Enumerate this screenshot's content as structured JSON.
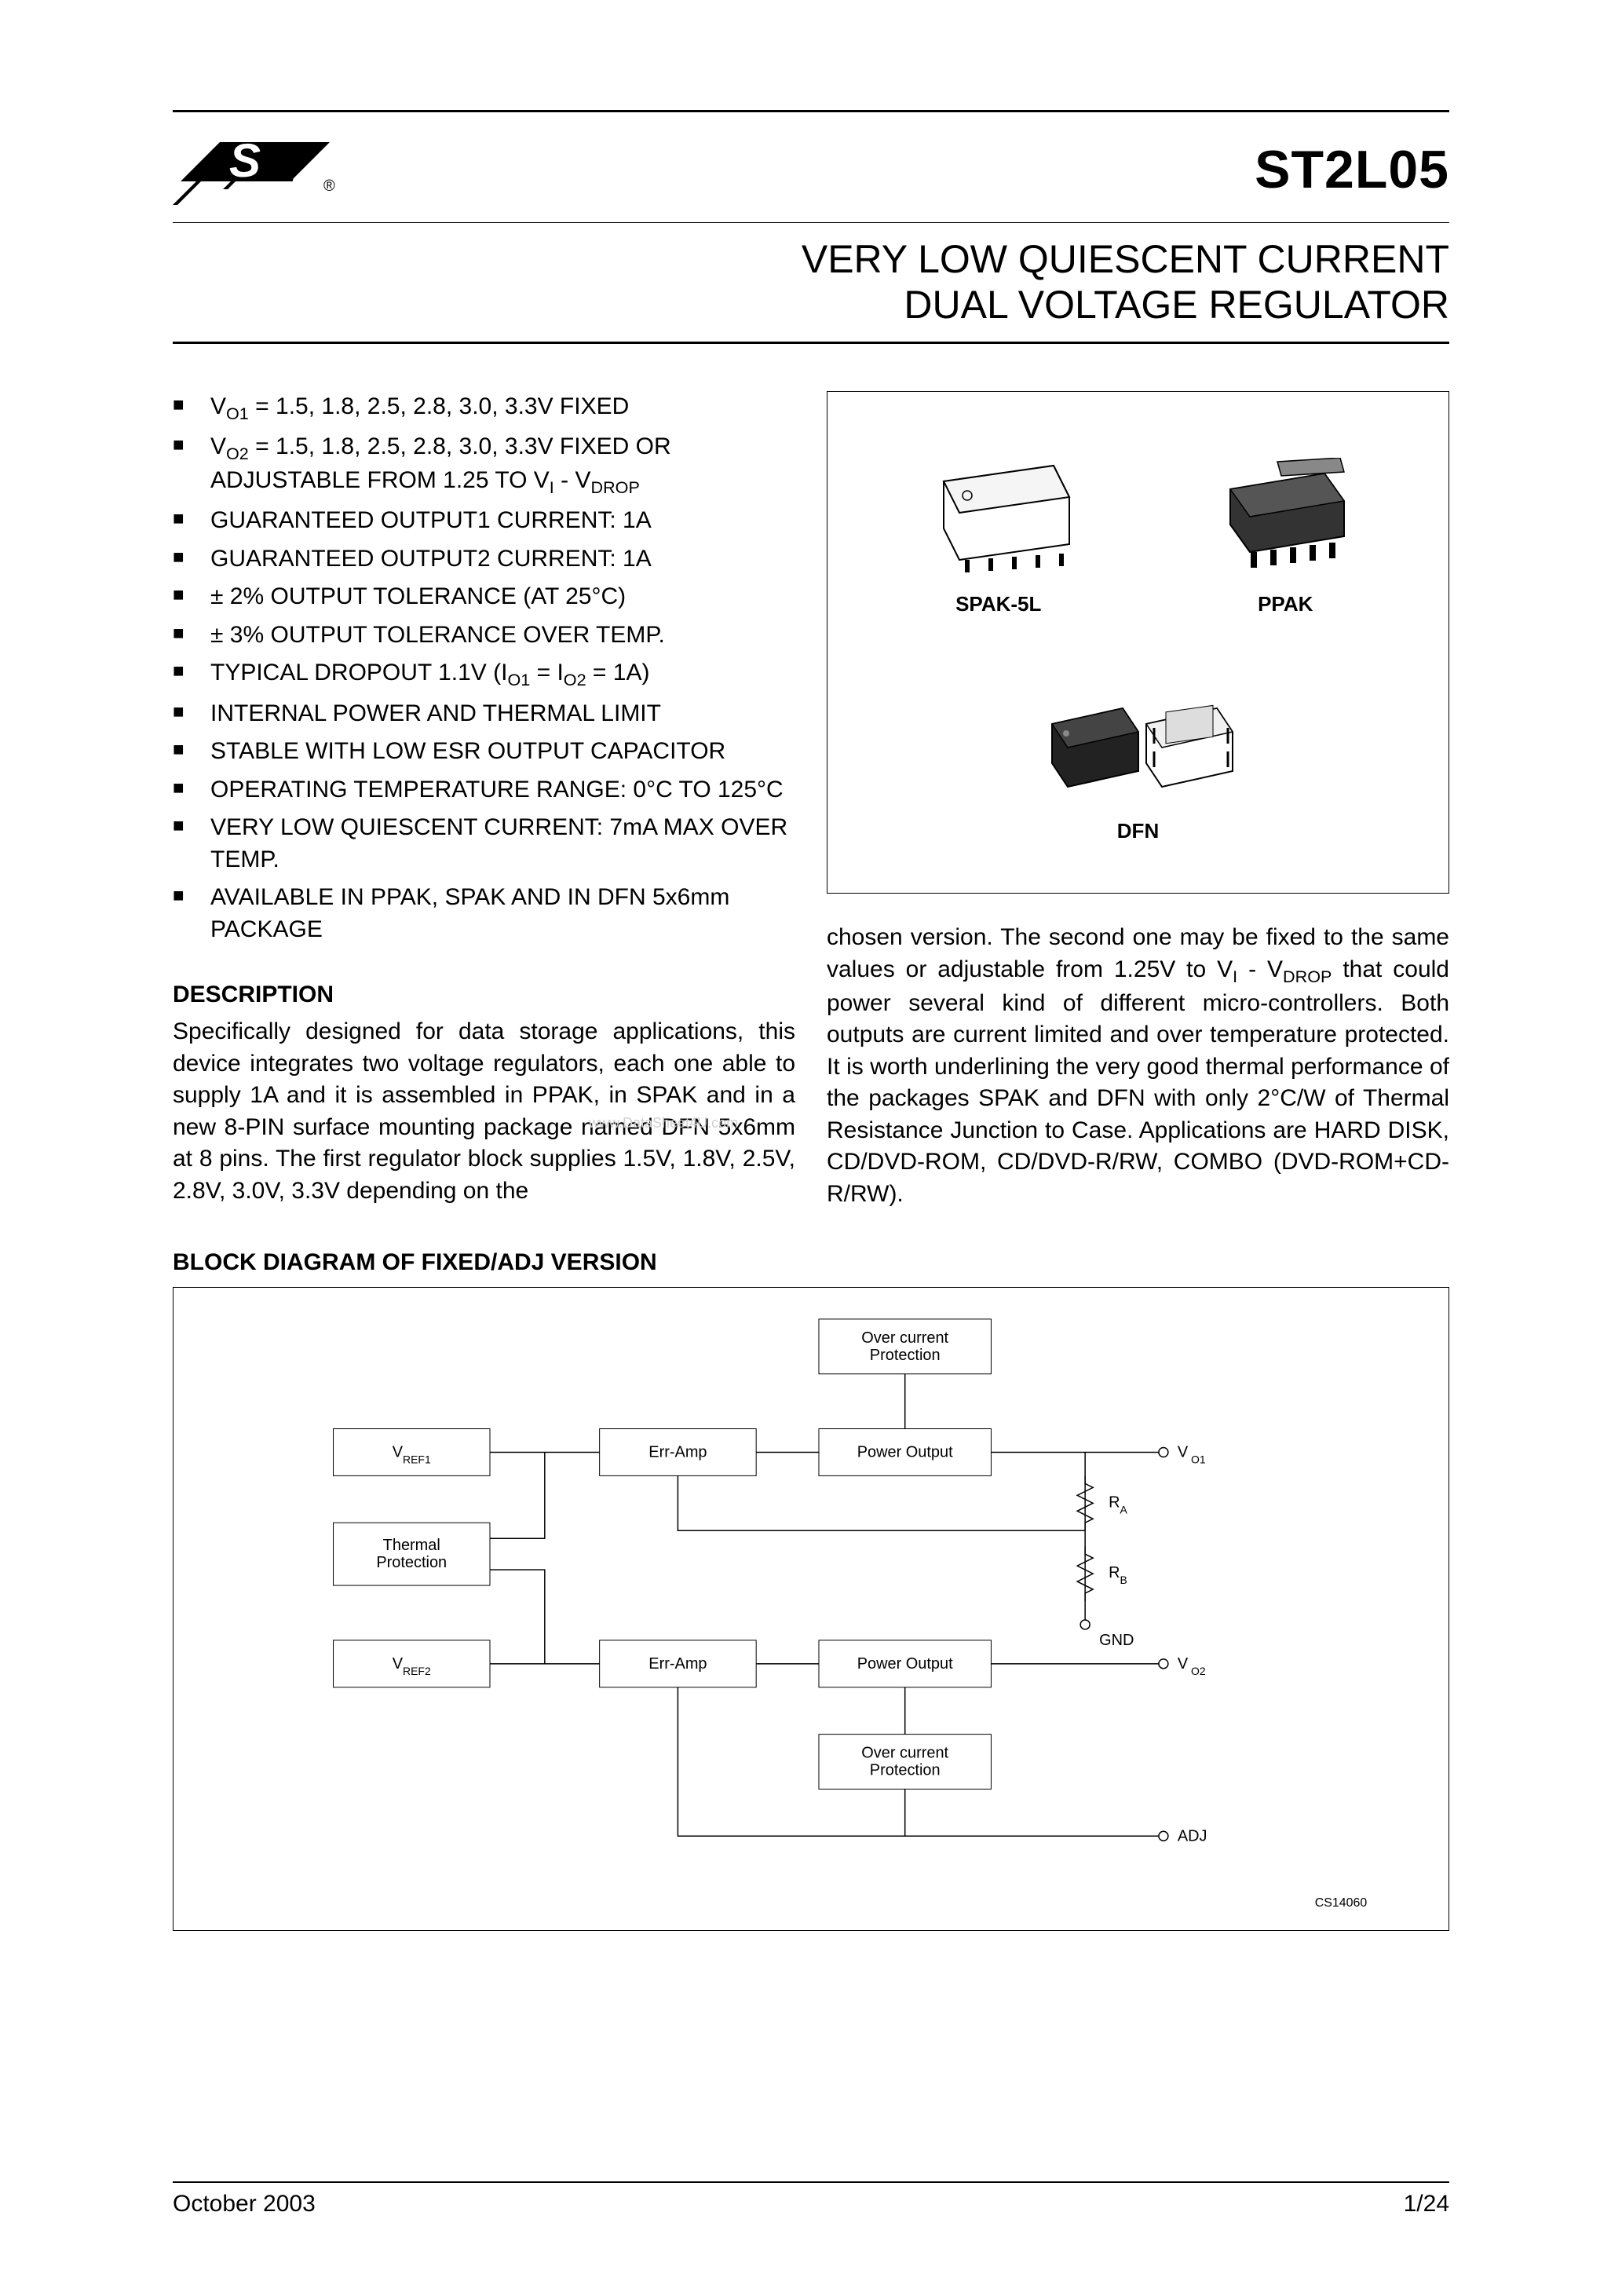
{
  "header": {
    "part_number": "ST2L05",
    "subtitle_line1": "VERY LOW QUIESCENT CURRENT",
    "subtitle_line2": "DUAL VOLTAGE REGULATOR"
  },
  "logo": {
    "brand_text": "ST",
    "registered_mark": "®"
  },
  "features": [
    {
      "pre": "V",
      "sub": "O1",
      "post": " = 1.5, 1.8, 2.5, 2.8, 3.0, 3.3V FIXED"
    },
    {
      "pre": "V",
      "sub": "O2",
      "post": " = 1.5, 1.8, 2.5, 2.8, 3.0, 3.3V FIXED OR ADJUSTABLE FROM 1.25 TO V",
      "sub2_pre": "",
      "sub2": "I",
      "post2": " - V",
      "sub3": "DROP"
    },
    {
      "text": "GUARANTEED OUTPUT1 CURRENT: 1A"
    },
    {
      "text": "GUARANTEED OUTPUT2 CURRENT: 1A"
    },
    {
      "text": "± 2% OUTPUT TOLERANCE (AT 25°C)"
    },
    {
      "text": "± 3% OUTPUT TOLERANCE OVER TEMP."
    },
    {
      "pre": "TYPICAL DROPOUT 1.1V (I",
      "sub": "O1",
      "post": " = I",
      "sub2": "O2",
      "post2": " = 1A)"
    },
    {
      "text": "INTERNAL POWER AND THERMAL LIMIT"
    },
    {
      "text": "STABLE WITH LOW ESR OUTPUT CAPACITOR"
    },
    {
      "text": "OPERATING TEMPERATURE RANGE: 0°C TO 125°C"
    },
    {
      "text": "VERY LOW QUIESCENT CURRENT: 7mA MAX OVER TEMP."
    },
    {
      "text": "AVAILABLE IN PPAK, SPAK AND IN DFN 5x6mm PACKAGE"
    }
  ],
  "description": {
    "heading": "DESCRIPTION",
    "text_left": "Specifically designed for data storage applications, this device integrates two voltage regulators, each one able to supply 1A and it is assembled in PPAK, in SPAK and in a new 8-PIN surface mounting package named DFN 5x6mm at 8 pins. The first regulator block supplies 1.5V, 1.8V, 2.5V, 2.8V, 3.0V, 3.3V depending on the",
    "text_right_part1": "chosen version. The second one may be fixed to the same values or adjustable from 1.25V to V",
    "text_right_sub1": "I",
    "text_right_part2": " - V",
    "text_right_sub2": "DROP",
    "text_right_part3": " that could power several kind of different micro-controllers. Both outputs are current limited and over temperature protected. It is worth underlining the very good thermal performance of the packages SPAK and DFN with only 2°C/W of Thermal Resistance Junction to Case. Applications are HARD DISK, CD/DVD-ROM, CD/DVD-R/RW, COMBO (DVD-ROM+CD-R/RW)."
  },
  "packages": {
    "spak_label": "SPAK-5L",
    "ppak_label": "PPAK",
    "dfn_label": "DFN"
  },
  "block_diagram": {
    "heading": "BLOCK DIAGRAM OF FIXED/ADJ VERSION",
    "boxes": {
      "vref1": "VREF1",
      "vref2": "VREF2",
      "thermal": "Thermal\nProtection",
      "erramp1": "Err-Amp",
      "erramp2": "Err-Amp",
      "power1": "Power Output",
      "power2": "Power Output",
      "ocp1": "Over current\nProtection",
      "ocp2": "Over current\nProtection"
    },
    "labels": {
      "vo1": "V O1",
      "vo2": "V O2",
      "adj": "ADJ",
      "gnd": "GND",
      "ra": "RA",
      "rb": "RB"
    },
    "footer_code": "CS14060",
    "box_stroke": "#000000",
    "box_fill": "#ffffff",
    "line_stroke": "#000000",
    "font_family": "Arial",
    "box_font_size": 16,
    "label_font_size": 16
  },
  "footer": {
    "date": "October 2003",
    "page": "1/24"
  },
  "watermark_text": "www.DataSheet4U.com",
  "colors": {
    "text": "#000000",
    "background": "#ffffff",
    "rule": "#000000"
  }
}
